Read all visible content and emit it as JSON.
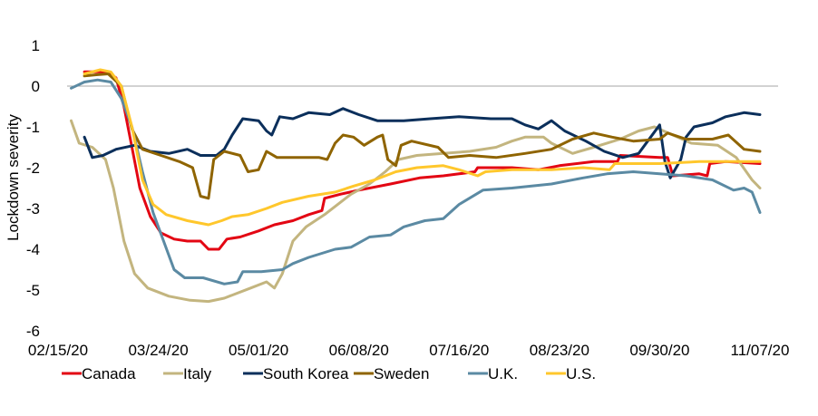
{
  "chart_data": {
    "type": "line",
    "title": "",
    "xlabel": "",
    "ylabel": "Lockdown severity",
    "ylim": [
      -6,
      1
    ],
    "yticks": [
      1,
      0,
      -1,
      -2,
      -3,
      -4,
      -5,
      -6
    ],
    "xlim": [
      "02/15/20",
      "11/07/20"
    ],
    "xticks": [
      "02/15/20",
      "03/24/20",
      "05/01/20",
      "06/08/20",
      "07/16/20",
      "08/23/20",
      "09/30/20",
      "11/07/20"
    ],
    "grid": false,
    "zero_line": true,
    "legend_position": "bottom",
    "series": [
      {
        "name": "Canada",
        "color": "#e30613",
        "points": [
          [
            "02/25/20",
            0.35
          ],
          [
            "03/01/20",
            0.35
          ],
          [
            "03/05/20",
            0.35
          ],
          [
            "03/08/20",
            0.2
          ],
          [
            "03/11/20",
            -0.5
          ],
          [
            "03/14/20",
            -1.5
          ],
          [
            "03/17/20",
            -2.5
          ],
          [
            "03/21/20",
            -3.2
          ],
          [
            "03/25/20",
            -3.6
          ],
          [
            "03/30/20",
            -3.75
          ],
          [
            "04/04/20",
            -3.8
          ],
          [
            "04/09/20",
            -3.8
          ],
          [
            "04/12/20",
            -4.0
          ],
          [
            "04/16/20",
            -4.0
          ],
          [
            "04/19/20",
            -3.75
          ],
          [
            "04/24/20",
            -3.7
          ],
          [
            "05/01/20",
            -3.55
          ],
          [
            "05/07/20",
            -3.4
          ],
          [
            "05/14/20",
            -3.3
          ],
          [
            "05/20/20",
            -3.15
          ],
          [
            "05/25/20",
            -3.05
          ],
          [
            "05/26/20",
            -2.75
          ],
          [
            "06/01/20",
            -2.65
          ],
          [
            "06/08/20",
            -2.55
          ],
          [
            "06/20/20",
            -2.4
          ],
          [
            "07/01/20",
            -2.25
          ],
          [
            "07/10/20",
            -2.2
          ],
          [
            "07/16/20",
            -2.15
          ],
          [
            "07/22/20",
            -2.1
          ],
          [
            "07/23/20",
            -2.0
          ],
          [
            "08/05/20",
            -2.0
          ],
          [
            "08/15/20",
            -2.05
          ],
          [
            "08/23/20",
            -1.95
          ],
          [
            "09/05/20",
            -1.85
          ],
          [
            "09/14/20",
            -1.85
          ],
          [
            "09/15/20",
            -1.7
          ],
          [
            "09/30/20",
            -1.75
          ],
          [
            "10/03/20",
            -1.75
          ],
          [
            "10/05/20",
            -2.2
          ],
          [
            "10/15/20",
            -2.15
          ],
          [
            "10/18/20",
            -2.2
          ],
          [
            "10/19/20",
            -1.9
          ],
          [
            "10/25/20",
            -1.85
          ],
          [
            "11/07/20",
            -1.9
          ]
        ]
      },
      {
        "name": "Italy",
        "color": "#c3b57f",
        "points": [
          [
            "02/20/20",
            -0.85
          ],
          [
            "02/23/20",
            -1.4
          ],
          [
            "02/28/20",
            -1.5
          ],
          [
            "03/04/20",
            -1.8
          ],
          [
            "03/07/20",
            -2.5
          ],
          [
            "03/11/20",
            -3.8
          ],
          [
            "03/15/20",
            -4.6
          ],
          [
            "03/20/20",
            -4.95
          ],
          [
            "03/28/20",
            -5.15
          ],
          [
            "04/05/20",
            -5.25
          ],
          [
            "04/12/20",
            -5.28
          ],
          [
            "04/18/20",
            -5.2
          ],
          [
            "04/22/20",
            -5.1
          ],
          [
            "04/28/20",
            -4.95
          ],
          [
            "05/04/20",
            -4.8
          ],
          [
            "05/07/20",
            -4.95
          ],
          [
            "05/10/20",
            -4.6
          ],
          [
            "05/14/20",
            -3.8
          ],
          [
            "05/19/20",
            -3.45
          ],
          [
            "05/26/20",
            -3.15
          ],
          [
            "06/01/20",
            -2.85
          ],
          [
            "06/05/20",
            -2.65
          ],
          [
            "06/12/20",
            -2.4
          ],
          [
            "06/18/20",
            -2.1
          ],
          [
            "06/23/20",
            -1.8
          ],
          [
            "06/30/20",
            -1.7
          ],
          [
            "07/10/20",
            -1.65
          ],
          [
            "07/20/20",
            -1.6
          ],
          [
            "07/30/20",
            -1.5
          ],
          [
            "08/05/20",
            -1.35
          ],
          [
            "08/10/20",
            -1.25
          ],
          [
            "08/17/20",
            -1.25
          ],
          [
            "08/20/20",
            -1.4
          ],
          [
            "08/28/20",
            -1.65
          ],
          [
            "09/05/20",
            -1.5
          ],
          [
            "09/15/20",
            -1.3
          ],
          [
            "09/22/20",
            -1.1
          ],
          [
            "09/28/20",
            -1.0
          ],
          [
            "10/05/20",
            -1.2
          ],
          [
            "10/12/20",
            -1.4
          ],
          [
            "10/22/20",
            -1.45
          ],
          [
            "10/29/20",
            -1.75
          ],
          [
            "11/04/20",
            -2.3
          ],
          [
            "11/07/20",
            -2.5
          ]
        ]
      },
      {
        "name": "South Korea",
        "color": "#0b2f5b",
        "points": [
          [
            "02/25/20",
            -1.25
          ],
          [
            "02/28/20",
            -1.75
          ],
          [
            "03/03/20",
            -1.7
          ],
          [
            "03/08/20",
            -1.55
          ],
          [
            "03/15/20",
            -1.45
          ],
          [
            "03/21/20",
            -1.6
          ],
          [
            "03/28/20",
            -1.65
          ],
          [
            "04/04/20",
            -1.55
          ],
          [
            "04/09/20",
            -1.7
          ],
          [
            "04/15/20",
            -1.7
          ],
          [
            "04/18/20",
            -1.55
          ],
          [
            "04/21/20",
            -1.2
          ],
          [
            "04/25/20",
            -0.8
          ],
          [
            "05/01/20",
            -0.85
          ],
          [
            "05/04/20",
            -1.1
          ],
          [
            "05/06/20",
            -1.2
          ],
          [
            "05/09/20",
            -0.75
          ],
          [
            "05/14/20",
            -0.8
          ],
          [
            "05/20/20",
            -0.65
          ],
          [
            "05/28/20",
            -0.7
          ],
          [
            "06/02/20",
            -0.55
          ],
          [
            "06/08/20",
            -0.7
          ],
          [
            "06/15/20",
            -0.85
          ],
          [
            "06/25/20",
            -0.85
          ],
          [
            "07/05/20",
            -0.8
          ],
          [
            "07/16/20",
            -0.75
          ],
          [
            "07/28/20",
            -0.8
          ],
          [
            "08/05/20",
            -0.8
          ],
          [
            "08/10/20",
            -0.95
          ],
          [
            "08/15/20",
            -1.05
          ],
          [
            "08/20/20",
            -0.85
          ],
          [
            "08/25/20",
            -1.1
          ],
          [
            "09/02/20",
            -1.35
          ],
          [
            "09/09/20",
            -1.6
          ],
          [
            "09/16/20",
            -1.75
          ],
          [
            "09/22/20",
            -1.65
          ],
          [
            "09/30/20",
            -0.95
          ],
          [
            "10/02/20",
            -1.85
          ],
          [
            "10/04/20",
            -2.25
          ],
          [
            "10/08/20",
            -1.8
          ],
          [
            "10/10/20",
            -1.25
          ],
          [
            "10/13/20",
            -1.0
          ],
          [
            "10/20/20",
            -0.9
          ],
          [
            "10/25/20",
            -0.75
          ],
          [
            "11/01/20",
            -0.65
          ],
          [
            "11/07/20",
            -0.7
          ]
        ]
      },
      {
        "name": "Sweden",
        "color": "#8f6400",
        "points": [
          [
            "02/25/20",
            0.25
          ],
          [
            "03/01/20",
            0.28
          ],
          [
            "03/05/20",
            0.3
          ],
          [
            "03/10/20",
            0.0
          ],
          [
            "03/14/20",
            -1.05
          ],
          [
            "03/18/20",
            -1.55
          ],
          [
            "03/25/20",
            -1.7
          ],
          [
            "04/01/20",
            -1.85
          ],
          [
            "04/06/20",
            -2.0
          ],
          [
            "04/09/20",
            -2.7
          ],
          [
            "04/12/20",
            -2.75
          ],
          [
            "04/14/20",
            -1.8
          ],
          [
            "04/18/20",
            -1.6
          ],
          [
            "04/24/20",
            -1.7
          ],
          [
            "04/27/20",
            -2.1
          ],
          [
            "05/01/20",
            -2.05
          ],
          [
            "05/04/20",
            -1.6
          ],
          [
            "05/08/20",
            -1.75
          ],
          [
            "05/18/20",
            -1.75
          ],
          [
            "05/24/20",
            -1.75
          ],
          [
            "05/27/20",
            -1.8
          ],
          [
            "05/30/20",
            -1.4
          ],
          [
            "06/02/20",
            -1.2
          ],
          [
            "06/06/20",
            -1.25
          ],
          [
            "06/10/20",
            -1.45
          ],
          [
            "06/15/20",
            -1.25
          ],
          [
            "06/17/20",
            -1.2
          ],
          [
            "06/19/20",
            -1.8
          ],
          [
            "06/22/20",
            -1.95
          ],
          [
            "06/24/20",
            -1.45
          ],
          [
            "06/28/20",
            -1.35
          ],
          [
            "07/08/20",
            -1.5
          ],
          [
            "07/12/20",
            -1.75
          ],
          [
            "07/20/20",
            -1.7
          ],
          [
            "07/30/20",
            -1.75
          ],
          [
            "08/10/20",
            -1.65
          ],
          [
            "08/20/20",
            -1.55
          ],
          [
            "08/28/20",
            -1.3
          ],
          [
            "09/05/20",
            -1.15
          ],
          [
            "09/12/20",
            -1.25
          ],
          [
            "09/20/20",
            -1.35
          ],
          [
            "09/30/20",
            -1.3
          ],
          [
            "10/03/20",
            -1.15
          ],
          [
            "10/10/20",
            -1.3
          ],
          [
            "10/20/20",
            -1.3
          ],
          [
            "10/26/20",
            -1.2
          ],
          [
            "11/01/20",
            -1.55
          ],
          [
            "11/07/20",
            -1.6
          ]
        ]
      },
      {
        "name": "U.K.",
        "color": "#5b8aa3",
        "points": [
          [
            "02/20/20",
            -0.05
          ],
          [
            "02/25/20",
            0.1
          ],
          [
            "03/01/20",
            0.15
          ],
          [
            "03/06/20",
            0.1
          ],
          [
            "03/10/20",
            -0.3
          ],
          [
            "03/14/20",
            -1.0
          ],
          [
            "03/18/20",
            -2.1
          ],
          [
            "03/22/20",
            -3.1
          ],
          [
            "03/26/20",
            -3.8
          ],
          [
            "03/30/20",
            -4.5
          ],
          [
            "04/03/20",
            -4.7
          ],
          [
            "04/10/20",
            -4.7
          ],
          [
            "04/18/20",
            -4.85
          ],
          [
            "04/23/20",
            -4.8
          ],
          [
            "04/25/20",
            -4.55
          ],
          [
            "05/02/20",
            -4.55
          ],
          [
            "05/10/20",
            -4.5
          ],
          [
            "05/14/20",
            -4.35
          ],
          [
            "05/20/20",
            -4.2
          ],
          [
            "05/30/20",
            -4.0
          ],
          [
            "06/05/20",
            -3.95
          ],
          [
            "06/12/20",
            -3.7
          ],
          [
            "06/20/20",
            -3.65
          ],
          [
            "06/25/20",
            -3.45
          ],
          [
            "07/03/20",
            -3.3
          ],
          [
            "07/10/20",
            -3.25
          ],
          [
            "07/16/20",
            -2.9
          ],
          [
            "07/25/20",
            -2.55
          ],
          [
            "08/05/20",
            -2.5
          ],
          [
            "08/20/20",
            -2.4
          ],
          [
            "09/01/20",
            -2.25
          ],
          [
            "09/10/20",
            -2.15
          ],
          [
            "09/20/20",
            -2.1
          ],
          [
            "09/30/20",
            -2.15
          ],
          [
            "10/10/20",
            -2.2
          ],
          [
            "10/20/20",
            -2.3
          ],
          [
            "10/28/20",
            -2.55
          ],
          [
            "11/01/20",
            -2.5
          ],
          [
            "11/04/20",
            -2.6
          ],
          [
            "11/07/20",
            -3.1
          ]
        ]
      },
      {
        "name": "U.S.",
        "color": "#ffc72c",
        "points": [
          [
            "02/25/20",
            0.3
          ],
          [
            "03/02/20",
            0.4
          ],
          [
            "03/06/20",
            0.35
          ],
          [
            "03/10/20",
            0.0
          ],
          [
            "03/14/20",
            -1.0
          ],
          [
            "03/18/20",
            -2.3
          ],
          [
            "03/22/20",
            -2.9
          ],
          [
            "03/27/20",
            -3.15
          ],
          [
            "04/04/20",
            -3.3
          ],
          [
            "04/12/20",
            -3.4
          ],
          [
            "04/17/20",
            -3.3
          ],
          [
            "04/21/20",
            -3.2
          ],
          [
            "04/27/20",
            -3.15
          ],
          [
            "05/04/20",
            -3.0
          ],
          [
            "05/10/20",
            -2.85
          ],
          [
            "05/20/20",
            -2.7
          ],
          [
            "05/30/20",
            -2.6
          ],
          [
            "06/06/20",
            -2.45
          ],
          [
            "06/14/20",
            -2.3
          ],
          [
            "06/22/20",
            -2.1
          ],
          [
            "06/30/20",
            -2.0
          ],
          [
            "07/10/20",
            -1.95
          ],
          [
            "07/16/20",
            -2.05
          ],
          [
            "07/23/20",
            -2.2
          ],
          [
            "07/26/20",
            -2.1
          ],
          [
            "08/05/20",
            -2.05
          ],
          [
            "08/20/20",
            -2.05
          ],
          [
            "09/01/20",
            -2.0
          ],
          [
            "09/11/20",
            -2.05
          ],
          [
            "09/13/20",
            -1.9
          ],
          [
            "09/30/20",
            -1.9
          ],
          [
            "10/15/20",
            -1.85
          ],
          [
            "10/25/20",
            -1.85
          ],
          [
            "11/07/20",
            -1.85
          ]
        ]
      }
    ]
  }
}
